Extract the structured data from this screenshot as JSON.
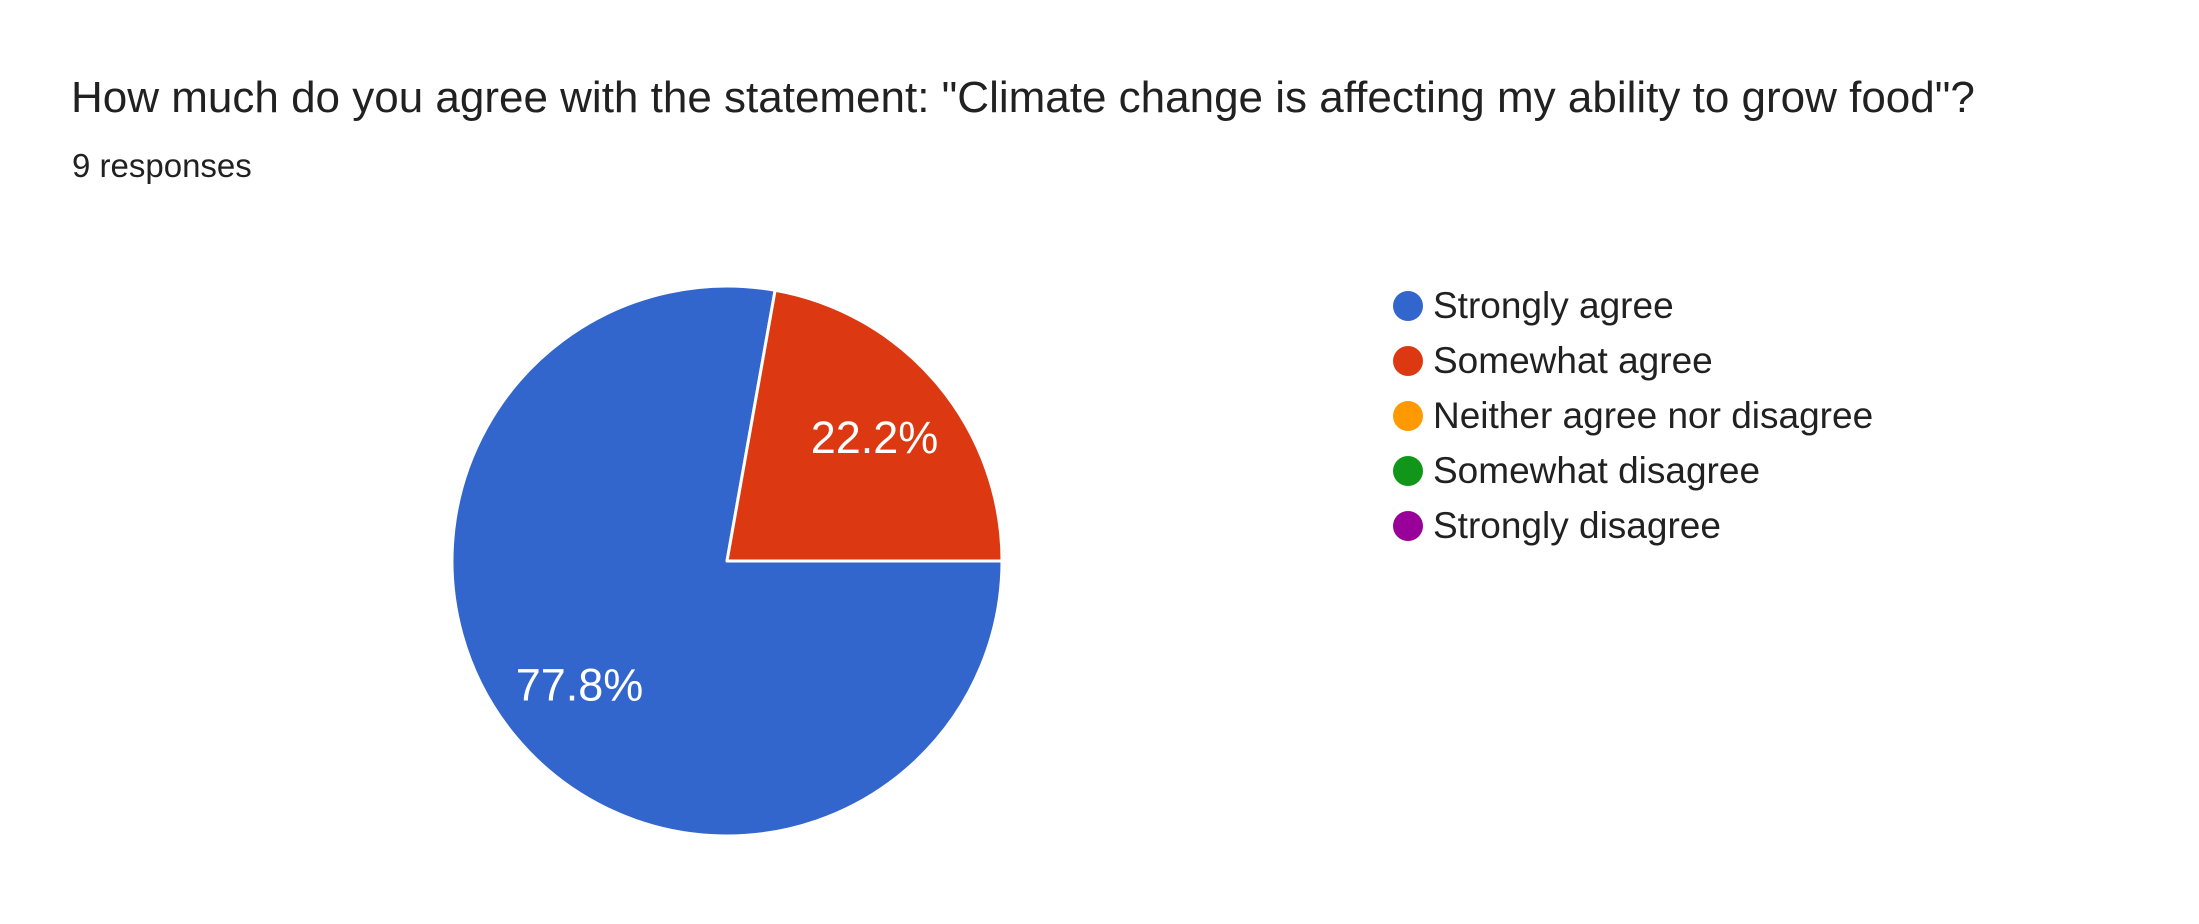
{
  "page": {
    "background_color": "#ffffff"
  },
  "chart_data": {
    "type": "pie",
    "title": "How much do you agree with the statement: \"Climate change is affecting my ability to grow food\"?",
    "subtitle": "9 responses",
    "categories": [
      "Strongly agree",
      "Somewhat agree",
      "Neither agree nor disagree",
      "Somewhat disagree",
      "Strongly disagree"
    ],
    "values_percent": [
      77.8,
      22.2,
      0,
      0,
      0
    ],
    "slice_labels": [
      "77.8%",
      "22.2%",
      "",
      "",
      ""
    ],
    "colors": [
      "#3366CC",
      "#DC3912",
      "#FF9900",
      "#109618",
      "#990099"
    ],
    "legend_position": "right",
    "start_angle_deg_clockwise_from_north": 90,
    "label_radius_ratio": 0.7,
    "slice_separator_color": "#ffffff",
    "slice_label_color": "#ffffff",
    "text_color": "#212121"
  }
}
